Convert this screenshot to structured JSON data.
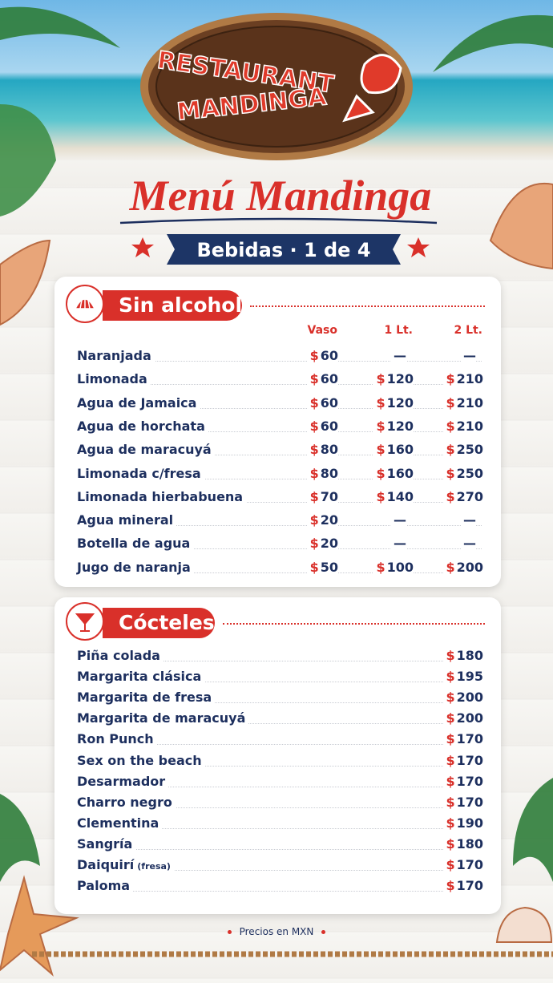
{
  "header": {
    "logo_line1": "RESTAURANT",
    "logo_line2": "MANDINGA",
    "title": "Menú Mandinga",
    "subtitle": "Bebidas · 1 de 4"
  },
  "currency": "$",
  "sections": [
    {
      "title": "Sin alcohol",
      "columns": [
        "Vaso",
        "1 Lt.",
        "2 Lt."
      ],
      "rows": [
        {
          "name": "Naranjada",
          "prices": [
            60,
            "—",
            "—"
          ]
        },
        {
          "name": "Limonada",
          "prices": [
            60,
            120,
            210
          ]
        },
        {
          "name": "Agua de Jamaica",
          "prices": [
            60,
            120,
            210
          ]
        },
        {
          "name": "Agua de horchata",
          "prices": [
            60,
            120,
            210
          ]
        },
        {
          "name": "Agua de maracuyá",
          "prices": [
            80,
            160,
            250
          ]
        },
        {
          "name": "Limonada c/fresa",
          "prices": [
            80,
            160,
            250
          ]
        },
        {
          "name": "Limonada hierbabuena",
          "prices": [
            70,
            140,
            270
          ]
        },
        {
          "name": "Agua mineral",
          "prices": [
            20,
            "—",
            "—"
          ]
        },
        {
          "name": "Botella de agua",
          "prices": [
            20,
            "—",
            "—"
          ]
        },
        {
          "name": "Jugo de naranja",
          "prices": [
            50,
            100,
            200
          ]
        }
      ]
    },
    {
      "title": "Cócteles",
      "rows": [
        {
          "name": "Piña colada",
          "prices": [
            180
          ]
        },
        {
          "name": "Margarita clásica",
          "prices": [
            195
          ]
        },
        {
          "name": "Margarita de fresa",
          "prices": [
            200
          ]
        },
        {
          "name": "Margarita de maracuyá",
          "prices": [
            200
          ]
        },
        {
          "name": "Ron Punch",
          "prices": [
            170
          ]
        },
        {
          "name": "Sex on the beach",
          "prices": [
            170
          ]
        },
        {
          "name": "Desarmador",
          "prices": [
            170
          ]
        },
        {
          "name": "Charro negro",
          "prices": [
            170
          ]
        },
        {
          "name": "Clementina",
          "prices": [
            190
          ]
        },
        {
          "name": "Sangría",
          "prices": [
            180
          ]
        },
        {
          "name": "Daiquirí",
          "note": "(fresa)",
          "prices": [
            170
          ]
        },
        {
          "name": "Paloma",
          "prices": [
            170
          ]
        }
      ]
    }
  ],
  "footer": "Precios en MXN"
}
